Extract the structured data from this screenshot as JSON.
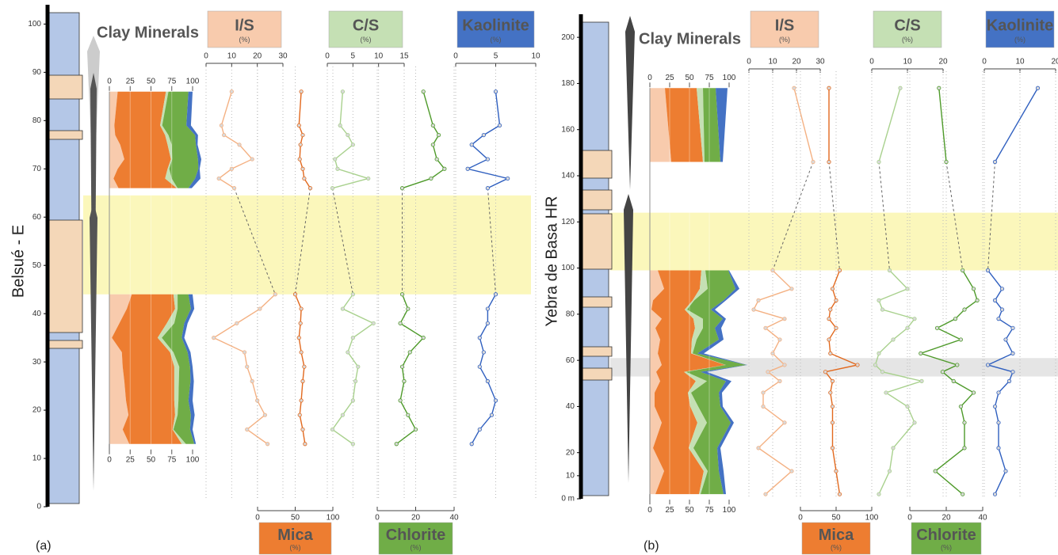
{
  "chart_data": [
    {
      "type": "profile",
      "label": "(a)",
      "ylabel": "Belsué - E",
      "ylim": [
        0,
        104
      ],
      "yticks": [
        0,
        10,
        20,
        30,
        40,
        50,
        60,
        70,
        80,
        90,
        100
      ],
      "y": [
        86,
        79,
        77,
        75,
        72,
        70,
        68,
        66,
        null,
        44,
        41,
        38,
        35,
        32,
        29,
        26,
        22,
        19,
        16,
        13
      ],
      "bands": [
        {
          "range": [
            44,
            64.5
          ],
          "color": "#fbf6b4"
        }
      ],
      "stack": {
        "title": "Clay Minerals",
        "xlim": [
          0,
          100
        ],
        "xticks": [
          0,
          25,
          50,
          75,
          100
        ]
      },
      "series": [
        {
          "name": "I/S",
          "unit": "(%)",
          "color": "#f8cbad",
          "line_color": "#f4b183",
          "axis_side": "top",
          "xlim": [
            0,
            30
          ],
          "xticks": [
            0,
            10,
            20,
            30
          ],
          "values": [
            10,
            6,
            7,
            13,
            18,
            10,
            5,
            11,
            null,
            27,
            21,
            12,
            3,
            15,
            16,
            18,
            20,
            23,
            16,
            24
          ]
        },
        {
          "name": "Mica",
          "unit": "(%)",
          "color": "#ed7d31",
          "line_color": "#e2691e",
          "axis_side": "bottom",
          "xlim": [
            0,
            100
          ],
          "xticks": [
            0,
            50,
            100
          ],
          "values": [
            58,
            55,
            60,
            57,
            56,
            60,
            62,
            70,
            null,
            50,
            58,
            57,
            55,
            58,
            62,
            60,
            58,
            56,
            60,
            63
          ]
        },
        {
          "name": "C/S",
          "unit": "(%)",
          "color": "#c5e0b4",
          "line_color": "#a9d18e",
          "axis_side": "top",
          "xlim": [
            0,
            15
          ],
          "xticks": [
            0,
            5,
            10,
            15
          ],
          "values": [
            3,
            2.5,
            4,
            5,
            1.5,
            2,
            8,
            1,
            null,
            5,
            3,
            9,
            5,
            4,
            6,
            5.5,
            5,
            3,
            1,
            5
          ]
        },
        {
          "name": "Chlorite",
          "unit": "(%)",
          "color": "#70ad47",
          "line_color": "#4e9a2a",
          "axis_side": "bottom",
          "xlim": [
            0,
            40
          ],
          "xticks": [
            0,
            20,
            40
          ],
          "values": [
            24,
            29,
            32,
            29,
            31,
            35,
            28,
            13,
            null,
            13,
            16,
            12,
            24,
            17,
            13,
            14,
            12,
            16,
            20,
            10
          ]
        },
        {
          "name": "Kaolinite",
          "unit": "(%)",
          "color": "#4472c4",
          "line_color": "#2f5fbf",
          "axis_side": "top",
          "xlim": [
            0,
            10
          ],
          "xticks": [
            0,
            5,
            10
          ],
          "values": [
            5,
            5.5,
            3.5,
            2,
            4,
            1.5,
            6.5,
            4,
            null,
            5,
            4,
            4,
            3,
            3.5,
            3,
            4,
            5,
            4.5,
            3,
            2
          ]
        }
      ]
    },
    {
      "type": "profile",
      "label": "(b)",
      "ylabel": "Yebra de  Basa HR",
      "ylim": [
        0,
        210
      ],
      "yticks": [
        {
          "value": 0,
          "label": "0 m"
        },
        10,
        20,
        40,
        60,
        80,
        100,
        120,
        140,
        160,
        180,
        200
      ],
      "y": [
        178,
        146,
        null,
        99,
        91,
        86,
        82,
        78,
        74,
        69,
        63,
        58,
        55,
        51,
        46,
        40,
        33,
        22,
        12,
        2
      ],
      "bands": [
        {
          "range": [
            99,
            124
          ],
          "color": "#fbf6b4"
        },
        {
          "range": [
            53,
            61
          ],
          "color": "#e2e2e2"
        }
      ],
      "stack": {
        "title": "Clay Minerals",
        "xlim": [
          0,
          100
        ],
        "xticks": [
          0,
          25,
          50,
          75,
          100
        ]
      },
      "series": [
        {
          "name": "I/S",
          "unit": "(%)",
          "color": "#f8cbad",
          "line_color": "#f4b183",
          "axis_side": "top",
          "xlim": [
            0,
            30
          ],
          "xticks": [
            0,
            10,
            20,
            30
          ],
          "values": [
            19,
            27,
            null,
            10,
            18,
            4,
            2,
            15,
            7,
            13,
            10,
            15,
            8,
            13,
            6,
            6,
            15,
            4,
            18,
            7
          ]
        },
        {
          "name": "Mica",
          "unit": "(%)",
          "color": "#ed7d31",
          "line_color": "#e2691e",
          "axis_side": "bottom",
          "xlim": [
            0,
            100
          ],
          "xticks": [
            0,
            50,
            100
          ],
          "values": [
            40,
            40,
            null,
            55,
            45,
            50,
            42,
            40,
            50,
            40,
            42,
            80,
            35,
            45,
            42,
            45,
            45,
            45,
            50,
            55
          ]
        },
        {
          "name": "C/S",
          "unit": "(%)",
          "color": "#c5e0b4",
          "line_color": "#a9d18e",
          "axis_side": "top",
          "xlim": [
            0,
            20
          ],
          "xticks": [
            0,
            10,
            20
          ],
          "values": [
            8,
            2,
            null,
            5,
            10,
            2,
            3,
            12,
            10,
            6,
            2,
            1,
            3,
            14,
            4,
            10,
            12,
            6,
            5,
            2
          ]
        },
        {
          "name": "Chlorite",
          "unit": "(%)",
          "color": "#70ad47",
          "line_color": "#4e9a2a",
          "axis_side": "bottom",
          "xlim": [
            0,
            40
          ],
          "xticks": [
            0,
            20,
            40
          ],
          "values": [
            16,
            20,
            null,
            29,
            35,
            37,
            30,
            25,
            15,
            28,
            6,
            26,
            18,
            24,
            35,
            28,
            30,
            30,
            14,
            29
          ]
        },
        {
          "name": "Kaolinite",
          "unit": "(%)",
          "color": "#4472c4",
          "line_color": "#2f5fbf",
          "axis_side": "top",
          "xlim": [
            0,
            20
          ],
          "xticks": [
            0,
            10,
            20
          ],
          "values": [
            15,
            3,
            null,
            1,
            5,
            3,
            5,
            4,
            8,
            6,
            8,
            1,
            8,
            7,
            4,
            3,
            4,
            4,
            6,
            3
          ]
        }
      ]
    }
  ]
}
